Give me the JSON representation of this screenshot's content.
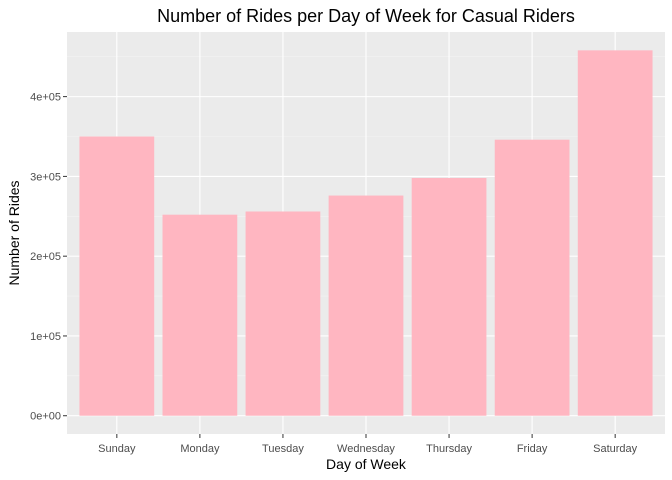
{
  "colors": {
    "panel_background": "#ebebeb",
    "grid_major": "#ffffff",
    "grid_minor": "#f4f4f4",
    "bar_fill": "#ffb6c1",
    "tick_color": "#333333"
  },
  "chart_data": {
    "type": "bar",
    "title": "Number of Rides per Day of Week for Casual Riders",
    "xlabel": "Day of Week",
    "ylabel": "Number of Rides",
    "categories": [
      "Sunday",
      "Monday",
      "Tuesday",
      "Wednesday",
      "Thursday",
      "Friday",
      "Saturday"
    ],
    "values": [
      350000,
      252000,
      256000,
      276000,
      298000,
      346000,
      458000
    ],
    "ylim": [
      -22900,
      481000
    ],
    "y_ticks": [
      0,
      100000,
      200000,
      300000,
      400000
    ],
    "y_tick_labels": [
      "0e+00",
      "1e+05",
      "2e+05",
      "3e+05",
      "4e+05"
    ],
    "grid": true,
    "legend": "none"
  }
}
